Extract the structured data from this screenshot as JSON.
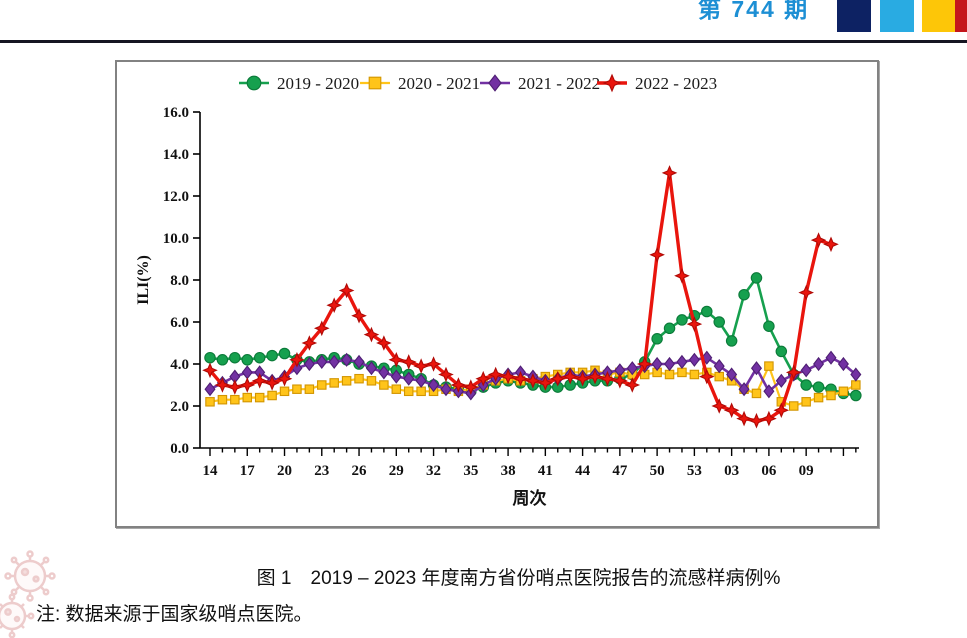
{
  "header": {
    "issue_label": "第 744 期",
    "issue_color": "#1d8fd4",
    "square_colors": [
      "#0d2263",
      "#29abe2",
      "#fdc608",
      "#c4161c"
    ],
    "rule_color": "#161622"
  },
  "figure": {
    "caption": "图 1　2019 – 2023 年度南方省份哨点医院报告的流感样病例%",
    "note": "注: 数据来源于国家级哨点医院。",
    "watermark_icon": "virus-doodle"
  },
  "chart_data": {
    "type": "line",
    "title": "",
    "xlabel": "周次",
    "ylabel": "ILI(%)",
    "ylim": [
      0,
      16
    ],
    "ytick_step": 2,
    "grid": false,
    "legend_position": "top",
    "x_categories": [
      "14",
      "15",
      "16",
      "17",
      "18",
      "19",
      "20",
      "21",
      "22",
      "23",
      "24",
      "25",
      "26",
      "27",
      "28",
      "29",
      "30",
      "31",
      "32",
      "33",
      "34",
      "35",
      "36",
      "37",
      "38",
      "39",
      "40",
      "41",
      "42",
      "43",
      "44",
      "45",
      "46",
      "47",
      "48",
      "49",
      "50",
      "51",
      "52",
      "53",
      "01",
      "02",
      "03",
      "04",
      "05",
      "06",
      "07",
      "08",
      "09",
      "10",
      "11",
      "12",
      "13"
    ],
    "x_label_every": 3,
    "x_last_labeled_index": 48,
    "series": [
      {
        "name": "2019 - 2020",
        "marker": "circle",
        "color": "#16a04e",
        "edge": "#0b7a39",
        "values": [
          4.3,
          4.2,
          4.3,
          4.2,
          4.3,
          4.4,
          4.5,
          4.2,
          4.1,
          4.2,
          4.3,
          4.2,
          4.0,
          3.9,
          3.8,
          3.7,
          3.5,
          3.3,
          3.0,
          2.9,
          2.8,
          2.7,
          2.9,
          3.1,
          3.2,
          3.1,
          3.0,
          2.9,
          2.9,
          3.0,
          3.1,
          3.2,
          3.2,
          3.3,
          3.5,
          4.1,
          5.2,
          5.7,
          6.1,
          6.3,
          6.5,
          6.0,
          5.1,
          7.3,
          8.1,
          5.8,
          4.6,
          3.5,
          3.0,
          2.9,
          2.8,
          2.6,
          2.5
        ]
      },
      {
        "name": "2020 - 2021",
        "marker": "square",
        "color": "#ffc41a",
        "edge": "#d29500",
        "values": [
          2.2,
          2.3,
          2.3,
          2.4,
          2.4,
          2.5,
          2.7,
          2.8,
          2.8,
          3.0,
          3.1,
          3.2,
          3.3,
          3.2,
          3.0,
          2.8,
          2.7,
          2.7,
          2.7,
          2.8,
          2.7,
          2.8,
          3.0,
          3.2,
          3.3,
          3.2,
          3.3,
          3.4,
          3.5,
          3.6,
          3.6,
          3.7,
          3.5,
          3.6,
          3.5,
          3.5,
          3.6,
          3.5,
          3.6,
          3.5,
          3.6,
          3.4,
          3.2,
          2.8,
          2.6,
          3.9,
          2.2,
          2.0,
          2.2,
          2.4,
          2.5,
          2.7,
          3.0
        ]
      },
      {
        "name": "2021 - 2022",
        "marker": "diamond",
        "color": "#7231a2",
        "edge": "#4e1f73",
        "values": [
          2.8,
          3.1,
          3.4,
          3.6,
          3.6,
          3.2,
          3.4,
          3.8,
          4.0,
          4.1,
          4.1,
          4.2,
          4.1,
          3.8,
          3.6,
          3.4,
          3.3,
          3.2,
          3.0,
          2.8,
          2.7,
          2.6,
          3.0,
          3.3,
          3.5,
          3.6,
          3.4,
          3.2,
          3.3,
          3.5,
          3.4,
          3.5,
          3.6,
          3.7,
          3.8,
          3.9,
          4.0,
          4.0,
          4.1,
          4.2,
          4.3,
          3.9,
          3.5,
          2.8,
          3.8,
          2.7,
          3.2,
          3.5,
          3.7,
          4.0,
          4.3,
          4.0,
          3.5
        ]
      },
      {
        "name": "2022 - 2023",
        "marker": "star4",
        "color": "#e9150d",
        "edge": "#b00a06",
        "values": [
          3.7,
          3.0,
          2.9,
          3.0,
          3.2,
          3.1,
          3.3,
          4.2,
          5.0,
          5.7,
          6.8,
          7.5,
          6.3,
          5.4,
          5.0,
          4.2,
          4.1,
          3.9,
          4.0,
          3.5,
          3.0,
          2.9,
          3.3,
          3.5,
          3.4,
          3.3,
          3.2,
          3.1,
          3.3,
          3.4,
          3.3,
          3.4,
          3.3,
          3.2,
          3.0,
          4.0,
          9.2,
          13.1,
          8.2,
          5.9,
          3.4,
          2.0,
          1.8,
          1.4,
          1.3,
          1.4,
          1.8,
          3.6,
          7.4,
          9.9,
          9.7
        ]
      }
    ]
  }
}
